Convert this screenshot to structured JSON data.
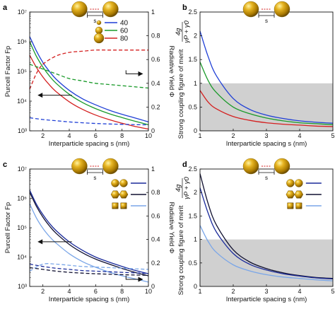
{
  "figure": {
    "panel_labels": [
      "a",
      "b",
      "c",
      "d"
    ],
    "colors": {
      "blue": "#1f3fd6",
      "green": "#1a9a2a",
      "red": "#d42020",
      "black": "#101030",
      "navy": "#1a2a9a",
      "light_blue": "#7aa6e8",
      "gold": "#c99a10",
      "shade": "#d0d0d0"
    },
    "icons": [
      "gold-sphere-dimer-icon",
      "gold-sphere-icon",
      "gold-cuboctahedron-icon",
      "gold-rhombic-dodecahedron-icon"
    ],
    "gap_label": "s"
  },
  "chart_data": [
    {
      "panel": "a",
      "type": "line",
      "xlabel": "Interparticle spacing s (nm)",
      "ylabel": "Purcell Factor Fp",
      "y2label": "Radiative Yield Φ",
      "xlim": [
        1,
        10
      ],
      "ylim": [
        1000,
        10000000
      ],
      "yscale": "log",
      "y2lim": [
        0,
        1
      ],
      "xticks": [
        2,
        4,
        6,
        8,
        10
      ],
      "yticks": [
        "10³",
        "10⁴",
        "10⁵",
        "10⁶",
        "10⁷"
      ],
      "y2ticks": [
        "0",
        "0.2",
        "0.4",
        "0.6",
        "0.8",
        "1"
      ],
      "legend": {
        "position": "top-right",
        "entries": [
          "40",
          "60",
          "80"
        ]
      },
      "series": [
        {
          "name": "40",
          "color": "blue",
          "axis": "left",
          "style": "solid",
          "x": [
            1,
            1.5,
            2,
            2.5,
            3,
            4,
            5,
            6,
            7,
            8,
            9,
            10
          ],
          "values": [
            1500000,
            500000,
            200000,
            100000,
            55000,
            23000,
            12000,
            7500,
            5000,
            3600,
            2700,
            2000
          ]
        },
        {
          "name": "60",
          "color": "green",
          "axis": "left",
          "style": "solid",
          "x": [
            1,
            1.5,
            2,
            2.5,
            3,
            4,
            5,
            6,
            7,
            8,
            9,
            10
          ],
          "values": [
            1000000,
            330000,
            140000,
            70000,
            40000,
            17000,
            9000,
            5600,
            3800,
            2800,
            2100,
            1600
          ]
        },
        {
          "name": "80",
          "color": "red",
          "axis": "left",
          "style": "solid",
          "x": [
            1,
            1.5,
            2,
            2.5,
            3,
            4,
            5,
            6,
            7,
            8,
            9,
            10
          ],
          "values": [
            350000,
            140000,
            65000,
            35000,
            21000,
            9500,
            5300,
            3400,
            2400,
            1800,
            1400,
            1150
          ]
        },
        {
          "name": "40",
          "color": "blue",
          "axis": "right",
          "style": "dashed",
          "x": [
            1,
            2,
            3,
            4,
            5,
            6,
            7,
            8,
            9,
            10
          ],
          "values": [
            0.11,
            0.095,
            0.085,
            0.075,
            0.068,
            0.062,
            0.058,
            0.055,
            0.052,
            0.05
          ]
        },
        {
          "name": "60",
          "color": "green",
          "axis": "right",
          "style": "dashed",
          "x": [
            1,
            2,
            3,
            4,
            5,
            6,
            7,
            8,
            9,
            10
          ],
          "values": [
            0.56,
            0.52,
            0.48,
            0.44,
            0.42,
            0.4,
            0.39,
            0.38,
            0.37,
            0.36
          ]
        },
        {
          "name": "80",
          "color": "red",
          "axis": "right",
          "style": "dashed",
          "x": [
            1,
            1.5,
            2,
            3,
            4,
            5,
            6,
            7,
            8,
            9,
            10
          ],
          "values": [
            0.35,
            0.48,
            0.56,
            0.63,
            0.66,
            0.67,
            0.68,
            0.68,
            0.68,
            0.68,
            0.68
          ]
        }
      ],
      "annotations": [
        "left-arrow",
        "right-arrow"
      ]
    },
    {
      "panel": "b",
      "type": "line",
      "xlabel": "Interparticle spacing s (nm)",
      "ylabel": "Strong coupling figure of merit",
      "ylabel_math": {
        "numerator": "4g",
        "denominator": "γP + γ0"
      },
      "xlim": [
        1,
        5
      ],
      "ylim": [
        0,
        2.5
      ],
      "xticks": [
        1,
        2,
        3,
        4,
        5
      ],
      "yticks": [
        0,
        0.5,
        1,
        1.5,
        2,
        2.5
      ],
      "shaded_region": {
        "ymin": 0,
        "ymax": 1
      },
      "series": [
        {
          "name": "40",
          "color": "blue",
          "x": [
            1,
            1.25,
            1.5,
            2,
            2.5,
            3,
            3.5,
            4,
            4.5,
            5
          ],
          "values": [
            2.1,
            1.55,
            1.15,
            0.68,
            0.45,
            0.33,
            0.26,
            0.21,
            0.18,
            0.16
          ]
        },
        {
          "name": "60",
          "color": "green",
          "x": [
            1,
            1.25,
            1.5,
            2,
            2.5,
            3,
            3.5,
            4,
            4.5,
            5
          ],
          "values": [
            1.45,
            1.05,
            0.8,
            0.5,
            0.36,
            0.27,
            0.21,
            0.17,
            0.15,
            0.13
          ]
        },
        {
          "name": "80",
          "color": "red",
          "x": [
            1,
            1.25,
            1.5,
            2,
            2.5,
            3,
            3.5,
            4,
            4.5,
            5
          ],
          "values": [
            0.85,
            0.6,
            0.46,
            0.3,
            0.22,
            0.17,
            0.14,
            0.12,
            0.1,
            0.09
          ]
        }
      ]
    },
    {
      "panel": "c",
      "type": "line",
      "xlabel": "Interparticle spacing s (nm)",
      "ylabel": "Purcell Factor Fp",
      "y2label": "Radiative Yield Φ",
      "xlim": [
        1,
        10
      ],
      "ylim": [
        1000,
        10000000
      ],
      "yscale": "log",
      "y2lim": [
        0,
        1
      ],
      "xticks": [
        2,
        4,
        6,
        8,
        10
      ],
      "yticks": [
        "10³",
        "10⁴",
        "10⁵",
        "10⁶",
        "10⁷"
      ],
      "y2ticks": [
        "0",
        "0.2",
        "0.4",
        "0.6",
        "0.8",
        "1"
      ],
      "legend": {
        "position": "top-right",
        "entries": [
          "sphere",
          "cuboctahedron",
          "rhombic dodecahedron"
        ]
      },
      "series": [
        {
          "color": "navy",
          "axis": "left",
          "style": "solid",
          "x": [
            1,
            1.5,
            2,
            2.5,
            3,
            4,
            5,
            6,
            7,
            8,
            9,
            10
          ],
          "values": [
            1900000,
            650000,
            280000,
            140000,
            80000,
            33000,
            17000,
            10000,
            6800,
            4800,
            3500,
            2700
          ]
        },
        {
          "color": "black",
          "axis": "left",
          "style": "solid",
          "x": [
            1,
            1.5,
            2,
            2.5,
            3,
            4,
            5,
            6,
            7,
            8,
            9,
            10
          ],
          "values": [
            1600000,
            550000,
            230000,
            115000,
            65000,
            27000,
            14000,
            8500,
            5800,
            4100,
            3000,
            2300
          ]
        },
        {
          "color": "light_blue",
          "axis": "left",
          "style": "solid",
          "x": [
            1,
            1.5,
            2,
            2.5,
            3,
            4,
            5,
            6,
            7,
            8,
            9,
            10
          ],
          "values": [
            650000,
            220000,
            95000,
            50000,
            30000,
            13000,
            7000,
            4500,
            3100,
            2300,
            1800,
            1400
          ]
        },
        {
          "color": "navy",
          "axis": "right",
          "style": "dashed",
          "x": [
            1,
            2,
            3,
            4,
            5,
            6,
            7,
            8,
            9,
            10
          ],
          "values": [
            0.19,
            0.17,
            0.155,
            0.145,
            0.135,
            0.13,
            0.125,
            0.12,
            0.115,
            0.11
          ]
        },
        {
          "color": "black",
          "axis": "right",
          "style": "dashed",
          "x": [
            1,
            2,
            3,
            4,
            5,
            6,
            7,
            8,
            9,
            10
          ],
          "values": [
            0.16,
            0.145,
            0.13,
            0.12,
            0.113,
            0.108,
            0.104,
            0.1,
            0.097,
            0.095
          ]
        },
        {
          "color": "light_blue",
          "axis": "right",
          "style": "dashed",
          "x": [
            1,
            2,
            3,
            4,
            5,
            6,
            7,
            8,
            9,
            10
          ],
          "values": [
            0.13,
            0.19,
            0.19,
            0.18,
            0.17,
            0.165,
            0.16,
            0.155,
            0.15,
            0.145
          ]
        }
      ],
      "annotations": [
        "left-arrow",
        "right-arrow"
      ]
    },
    {
      "panel": "d",
      "type": "line",
      "xlabel": "Interparticle spacing s (nm)",
      "ylabel": "Strong coupling figure of merit",
      "ylabel_math": {
        "numerator": "4g",
        "denominator": "γP + γ0"
      },
      "xlim": [
        1,
        5
      ],
      "ylim": [
        0,
        2.5
      ],
      "xticks": [
        1,
        2,
        3,
        4,
        5
      ],
      "yticks": [
        0,
        0.5,
        1,
        1.5,
        2,
        2.5
      ],
      "shaded_region": {
        "ymin": 0,
        "ymax": 1
      },
      "series": [
        {
          "color": "black",
          "x": [
            1,
            1.25,
            1.5,
            2,
            2.5,
            3,
            3.5,
            4,
            4.5,
            5
          ],
          "values": [
            2.4,
            1.75,
            1.3,
            0.78,
            0.52,
            0.38,
            0.29,
            0.23,
            0.19,
            0.17
          ]
        },
        {
          "color": "navy",
          "x": [
            1,
            1.25,
            1.5,
            2,
            2.5,
            3,
            3.5,
            4,
            4.5,
            5
          ],
          "values": [
            2.1,
            1.55,
            1.15,
            0.7,
            0.47,
            0.35,
            0.27,
            0.22,
            0.18,
            0.16
          ]
        },
        {
          "color": "light_blue",
          "x": [
            1,
            1.25,
            1.5,
            2,
            2.5,
            3,
            3.5,
            4,
            4.5,
            5
          ],
          "values": [
            1.3,
            0.95,
            0.72,
            0.46,
            0.33,
            0.25,
            0.2,
            0.17,
            0.14,
            0.12
          ]
        }
      ]
    }
  ]
}
